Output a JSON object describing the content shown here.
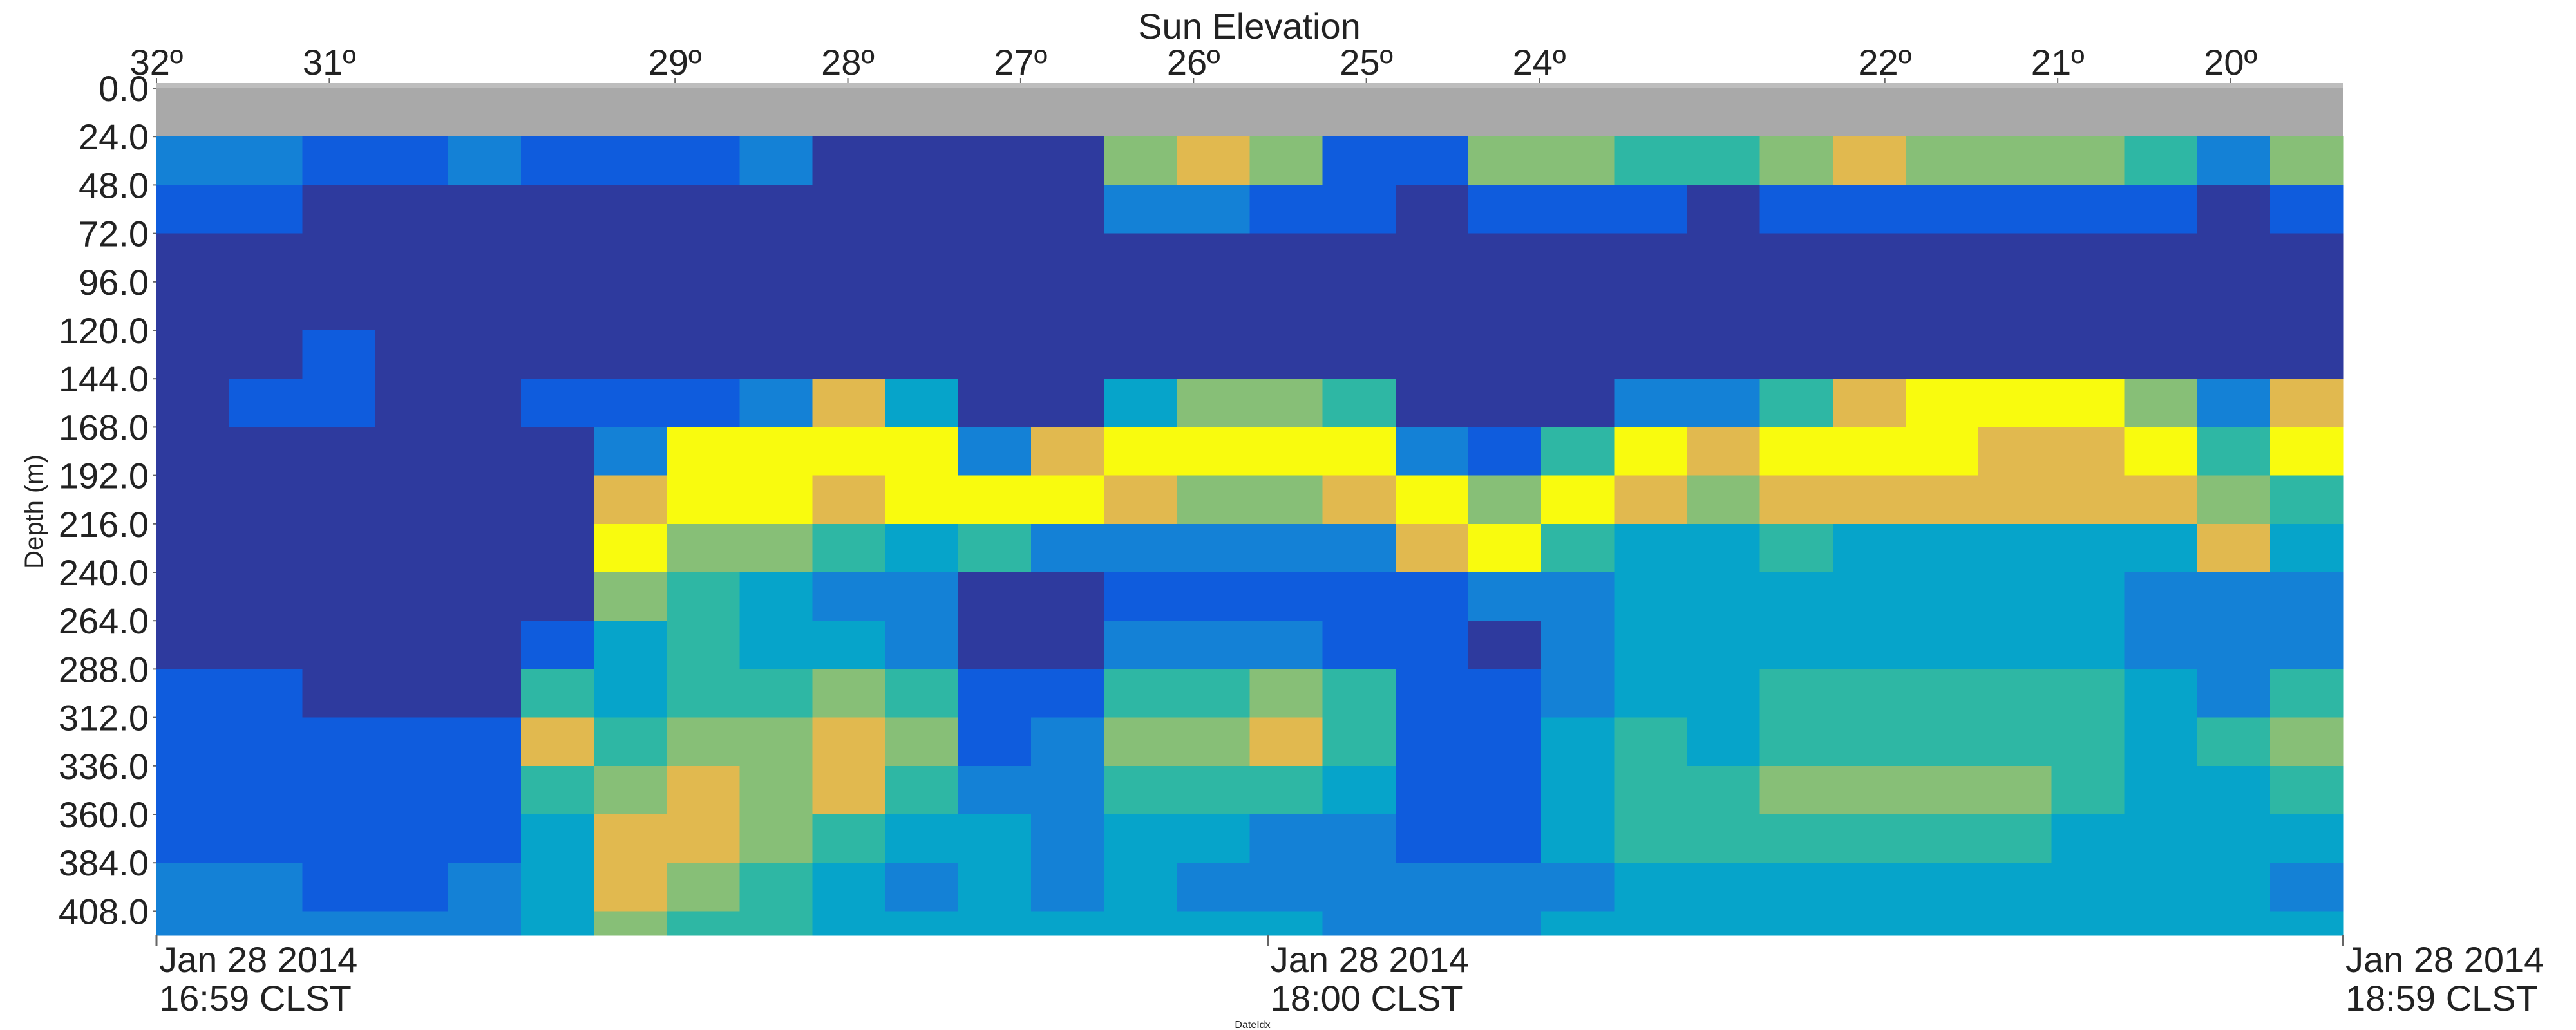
{
  "chart_data": {
    "type": "heatmap",
    "title": "Sun Elevation",
    "ylabel": "Depth (m)",
    "xlabel": "DateIdx",
    "xlim": [
      "2014-01-28T16:59",
      "2014-01-28T18:59"
    ],
    "xticks": [
      {
        "value": "2014-01-28T16:59",
        "label": [
          "Jan 28 2014",
          "16:59 CLST"
        ]
      },
      {
        "value": "2014-01-28T18:00",
        "label": [
          "Jan 28 2014",
          "18:00 CLST"
        ]
      },
      {
        "value": "2014-01-28T18:59",
        "label": [
          "Jan 28 2014",
          "18:59 CLST"
        ]
      }
    ],
    "x2lim": [
      32,
      19.35
    ],
    "x2ticks": [
      {
        "value": 32,
        "label": "32º"
      },
      {
        "value": 31,
        "label": "31º"
      },
      {
        "value": 29,
        "label": "29º"
      },
      {
        "value": 28,
        "label": "28º"
      },
      {
        "value": 27,
        "label": "27º"
      },
      {
        "value": 26,
        "label": "26º"
      },
      {
        "value": 25,
        "label": "25º"
      },
      {
        "value": 24,
        "label": "24º"
      },
      {
        "value": 22,
        "label": "22º"
      },
      {
        "value": 21,
        "label": "21º"
      },
      {
        "value": 20,
        "label": "20º"
      }
    ],
    "ylim": [
      0,
      420
    ],
    "y_inverted": true,
    "yticks": [
      {
        "value": 0,
        "label": "0.0"
      },
      {
        "value": 24,
        "label": "24.0"
      },
      {
        "value": 48,
        "label": "48.0"
      },
      {
        "value": 72,
        "label": "72.0"
      },
      {
        "value": 96,
        "label": "96.0"
      },
      {
        "value": 120,
        "label": "120.0"
      },
      {
        "value": 144,
        "label": "144.0"
      },
      {
        "value": 168,
        "label": "168.0"
      },
      {
        "value": 192,
        "label": "192.0"
      },
      {
        "value": 216,
        "label": "216.0"
      },
      {
        "value": 240,
        "label": "240.0"
      },
      {
        "value": 264,
        "label": "264.0"
      },
      {
        "value": 288,
        "label": "288.0"
      },
      {
        "value": 312,
        "label": "312.0"
      },
      {
        "value": 336,
        "label": "336.0"
      },
      {
        "value": 360,
        "label": "360.0"
      },
      {
        "value": 384,
        "label": "384.0"
      },
      {
        "value": 408,
        "label": "408.0"
      }
    ],
    "xbins": [
      "2014-01-28T16:59",
      "2014-01-28T17:03",
      "2014-01-28T17:07",
      "2014-01-28T17:11",
      "2014-01-28T17:15",
      "2014-01-28T17:19",
      "2014-01-28T17:23",
      "2014-01-28T17:27",
      "2014-01-28T17:31",
      "2014-01-28T17:35",
      "2014-01-28T17:39",
      "2014-01-28T17:43",
      "2014-01-28T17:47",
      "2014-01-28T17:51",
      "2014-01-28T17:55",
      "2014-01-28T17:59",
      "2014-01-28T18:03",
      "2014-01-28T18:07",
      "2014-01-28T18:11",
      "2014-01-28T18:15",
      "2014-01-28T18:19",
      "2014-01-28T18:23",
      "2014-01-28T18:27",
      "2014-01-28T18:31",
      "2014-01-28T18:35",
      "2014-01-28T18:39",
      "2014-01-28T18:43",
      "2014-01-28T18:47",
      "2014-01-28T18:51",
      "2014-01-28T18:55",
      "2014-01-28T18:59"
    ],
    "ybins": [
      24,
      48,
      72,
      96,
      120,
      144,
      168,
      192,
      216,
      240,
      264,
      288,
      312,
      336,
      360,
      384,
      408,
      420
    ],
    "zlim": [
      0,
      8
    ],
    "colormap": [
      "#352a87",
      "#2e3a9e",
      "#0f5cdd",
      "#1481d6",
      "#06a4ca",
      "#2eb7a4",
      "#87bf77",
      "#e1b94f",
      "#f9fb0e"
    ],
    "no_data_color": "#a9a9a9",
    "z": [
      [
        3,
        2,
        1,
        1,
        1,
        1,
        1,
        1,
        1,
        1,
        1,
        2,
        2,
        2,
        2,
        3,
        3
      ],
      [
        3,
        2,
        1,
        1,
        1,
        2,
        1,
        1,
        1,
        1,
        1,
        2,
        2,
        2,
        2,
        3,
        3
      ],
      [
        2,
        1,
        1,
        1,
        2,
        2,
        1,
        1,
        1,
        1,
        1,
        1,
        2,
        2,
        2,
        2,
        3
      ],
      [
        2,
        1,
        1,
        1,
        1,
        1,
        1,
        1,
        1,
        1,
        1,
        1,
        2,
        2,
        2,
        2,
        3
      ],
      [
        3,
        1,
        1,
        1,
        1,
        1,
        1,
        1,
        1,
        1,
        1,
        1,
        2,
        2,
        2,
        3,
        3
      ],
      [
        2,
        1,
        1,
        1,
        1,
        2,
        1,
        1,
        1,
        1,
        2,
        5,
        7,
        5,
        4,
        4,
        4
      ],
      [
        2,
        1,
        1,
        1,
        1,
        2,
        3,
        7,
        8,
        6,
        4,
        4,
        5,
        6,
        7,
        7,
        6
      ],
      [
        2,
        1,
        1,
        1,
        1,
        2,
        8,
        8,
        6,
        5,
        5,
        5,
        6,
        7,
        7,
        6,
        5
      ],
      [
        3,
        1,
        1,
        1,
        1,
        3,
        8,
        8,
        6,
        4,
        4,
        5,
        6,
        6,
        6,
        5,
        5
      ],
      [
        1,
        1,
        1,
        1,
        1,
        7,
        8,
        7,
        5,
        3,
        4,
        6,
        7,
        7,
        5,
        4,
        4
      ],
      [
        1,
        1,
        1,
        1,
        1,
        4,
        8,
        8,
        4,
        3,
        3,
        5,
        6,
        5,
        4,
        3,
        4
      ],
      [
        1,
        1,
        1,
        1,
        1,
        1,
        3,
        8,
        5,
        1,
        1,
        2,
        2,
        3,
        4,
        4,
        4
      ],
      [
        1,
        1,
        1,
        1,
        1,
        1,
        7,
        8,
        3,
        1,
        1,
        2,
        3,
        3,
        3,
        3,
        4
      ],
      [
        6,
        3,
        1,
        1,
        1,
        4,
        8,
        7,
        3,
        2,
        3,
        5,
        6,
        5,
        4,
        4,
        4
      ],
      [
        7,
        3,
        1,
        1,
        1,
        6,
        8,
        6,
        3,
        2,
        3,
        5,
        6,
        5,
        4,
        3,
        4
      ],
      [
        6,
        2,
        1,
        1,
        1,
        6,
        8,
        6,
        3,
        2,
        3,
        6,
        7,
        5,
        3,
        3,
        4
      ],
      [
        2,
        2,
        1,
        1,
        1,
        5,
        8,
        7,
        3,
        2,
        2,
        5,
        5,
        4,
        3,
        3,
        3
      ],
      [
        2,
        1,
        1,
        1,
        1,
        1,
        3,
        8,
        7,
        2,
        2,
        2,
        2,
        2,
        2,
        3,
        3
      ],
      [
        6,
        2,
        1,
        1,
        1,
        1,
        2,
        6,
        8,
        3,
        1,
        2,
        2,
        2,
        2,
        3,
        3
      ],
      [
        6,
        2,
        1,
        1,
        1,
        1,
        5,
        8,
        5,
        3,
        3,
        3,
        4,
        4,
        4,
        3,
        4
      ],
      [
        5,
        2,
        1,
        1,
        1,
        3,
        8,
        7,
        4,
        4,
        4,
        4,
        5,
        5,
        5,
        4,
        4
      ],
      [
        5,
        1,
        1,
        1,
        1,
        3,
        7,
        6,
        4,
        4,
        4,
        4,
        4,
        5,
        5,
        4,
        4
      ],
      [
        6,
        2,
        1,
        1,
        1,
        5,
        8,
        7,
        5,
        4,
        4,
        5,
        5,
        6,
        5,
        4,
        4
      ],
      [
        7,
        2,
        1,
        1,
        1,
        7,
        8,
        7,
        4,
        4,
        4,
        5,
        5,
        6,
        5,
        4,
        4
      ],
      [
        6,
        2,
        1,
        1,
        1,
        8,
        8,
        7,
        4,
        4,
        4,
        5,
        5,
        6,
        5,
        4,
        4
      ],
      [
        6,
        2,
        1,
        1,
        1,
        8,
        7,
        7,
        4,
        4,
        4,
        5,
        5,
        6,
        5,
        4,
        4
      ],
      [
        6,
        2,
        1,
        1,
        1,
        8,
        7,
        7,
        4,
        4,
        4,
        5,
        5,
        5,
        4,
        4,
        4
      ],
      [
        5,
        2,
        1,
        1,
        1,
        6,
        8,
        7,
        4,
        3,
        3,
        4,
        4,
        4,
        4,
        4,
        4
      ],
      [
        3,
        1,
        1,
        1,
        1,
        3,
        5,
        6,
        7,
        3,
        3,
        3,
        5,
        4,
        4,
        4,
        4
      ],
      [
        6,
        2,
        1,
        1,
        1,
        7,
        8,
        5,
        4,
        3,
        3,
        5,
        6,
        5,
        4,
        3,
        4
      ]
    ]
  }
}
